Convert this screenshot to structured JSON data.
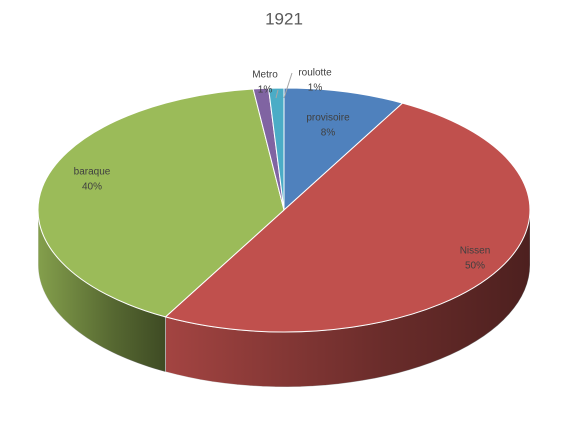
{
  "chart_data": {
    "type": "pie",
    "title": "1921",
    "categories": [
      "provisoire",
      "Nissen",
      "baraque",
      "Metro",
      "roulotte"
    ],
    "values": [
      8,
      50,
      40,
      1,
      1
    ],
    "value_labels": [
      "8%",
      "50%",
      "40%",
      "1%",
      "1%"
    ],
    "colors": [
      "#4f81bd",
      "#c0504d",
      "#9bbb59",
      "#8064a2",
      "#4bacc6"
    ]
  }
}
